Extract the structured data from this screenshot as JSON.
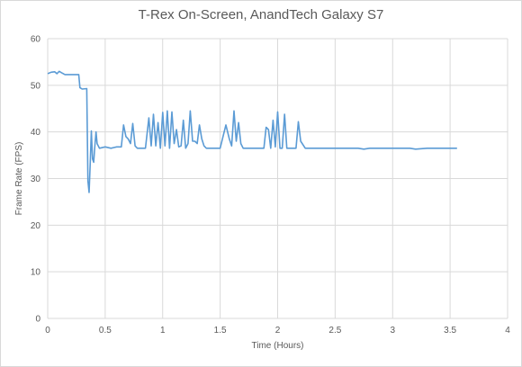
{
  "chart_data": {
    "type": "line",
    "title": "T-Rex On-Screen, AnandTech Galaxy S7",
    "xlabel": "Time (Hours)",
    "ylabel": "Frame Rate (FPS)",
    "xlim": [
      0,
      4
    ],
    "ylim": [
      0,
      60
    ],
    "xticks": [
      0,
      0.5,
      1,
      1.5,
      2,
      2.5,
      3,
      3.5,
      4
    ],
    "xtick_labels": [
      "0",
      "0.5",
      "1",
      "1.5",
      "2",
      "2.5",
      "3",
      "3.5",
      "4"
    ],
    "yticks": [
      0,
      10,
      20,
      30,
      40,
      50,
      60
    ],
    "ytick_labels": [
      "0",
      "10",
      "20",
      "30",
      "40",
      "50",
      "60"
    ],
    "grid": "vertical and horizontal",
    "legend": "none",
    "color": "#5b9bd5",
    "series": [
      {
        "x": [
          0,
          0.03,
          0.06,
          0.08,
          0.1,
          0.12,
          0.15,
          0.2,
          0.27,
          0.28,
          0.3,
          0.34,
          0.35,
          0.36,
          0.37,
          0.38,
          0.39,
          0.4,
          0.41,
          0.42,
          0.43,
          0.45,
          0.5,
          0.55,
          0.6,
          0.64,
          0.66,
          0.68,
          0.7,
          0.72,
          0.74,
          0.76,
          0.78,
          0.8,
          0.85,
          0.88,
          0.9,
          0.92,
          0.94,
          0.96,
          0.98,
          1.0,
          1.02,
          1.04,
          1.06,
          1.08,
          1.1,
          1.12,
          1.14,
          1.16,
          1.18,
          1.2,
          1.22,
          1.24,
          1.26,
          1.28,
          1.3,
          1.32,
          1.34,
          1.36,
          1.38,
          1.4,
          1.42,
          1.44,
          1.46,
          1.5,
          1.55,
          1.58,
          1.6,
          1.62,
          1.64,
          1.66,
          1.68,
          1.7,
          1.72,
          1.74,
          1.76,
          1.8,
          1.85,
          1.88,
          1.9,
          1.92,
          1.94,
          1.96,
          1.98,
          2.0,
          2.02,
          2.04,
          2.06,
          2.08,
          2.1,
          2.14,
          2.16,
          2.18,
          2.2,
          2.24,
          2.3,
          2.5,
          2.7,
          2.75,
          2.8,
          3.0,
          3.15,
          3.2,
          3.3,
          3.5,
          3.56
        ],
        "y": [
          52.5,
          52.8,
          52.9,
          52.5,
          53.0,
          52.7,
          52.3,
          52.3,
          52.3,
          49.5,
          49.2,
          49.3,
          29.5,
          27.0,
          33.5,
          40.2,
          34.2,
          33.5,
          37.0,
          40.0,
          37.5,
          36.5,
          36.8,
          36.5,
          36.8,
          36.8,
          41.5,
          39.0,
          38.5,
          37.5,
          41.8,
          37.0,
          36.5,
          36.5,
          36.5,
          43.0,
          37.0,
          43.8,
          37.0,
          42.0,
          36.5,
          44.2,
          37.0,
          44.5,
          36.5,
          44.3,
          37.5,
          40.5,
          36.8,
          37.0,
          42.5,
          36.5,
          37.5,
          44.5,
          38.0,
          38.0,
          37.5,
          41.5,
          38.5,
          37.0,
          36.5,
          36.5,
          36.5,
          36.5,
          36.5,
          36.5,
          41.5,
          38.5,
          37.0,
          44.5,
          38.0,
          42.0,
          37.5,
          36.5,
          36.5,
          36.5,
          36.5,
          36.5,
          36.5,
          36.5,
          41.0,
          40.5,
          36.5,
          42.5,
          36.8,
          44.3,
          36.5,
          36.5,
          43.8,
          36.5,
          36.5,
          36.5,
          36.5,
          42.2,
          38.0,
          36.5,
          36.5,
          36.5,
          36.5,
          36.3,
          36.5,
          36.5,
          36.5,
          36.3,
          36.5,
          36.5,
          36.5
        ]
      }
    ]
  }
}
